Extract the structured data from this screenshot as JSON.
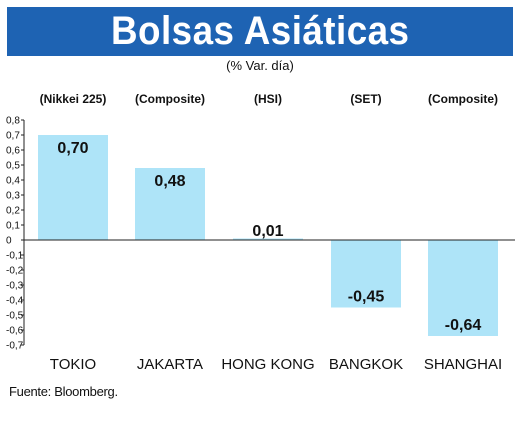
{
  "header": {
    "title": "Bolsas Asiáticas",
    "subtitle": "(% Var. día)"
  },
  "source": "Fuente: Bloomberg.",
  "colors": {
    "title_bg": "#1e63b3",
    "bar_fill": "#aee4f8",
    "title_text": "#ffffff"
  },
  "chart_data": {
    "type": "bar",
    "title": "Bolsas Asiáticas",
    "subtitle": "(% Var. día)",
    "categories": [
      "TOKIO",
      "JAKARTA",
      "HONG KONG",
      "BANGKOK",
      "SHANGHAI"
    ],
    "index_names": [
      "(Nikkei 225)",
      "(Composite)",
      "(HSI)",
      "(SET)",
      "(Composite)"
    ],
    "values": [
      0.7,
      0.48,
      0.01,
      -0.45,
      -0.64
    ],
    "value_labels": [
      "0,70",
      "0,48",
      "0,01",
      "-0,45",
      "-0,64"
    ],
    "ylim": [
      -0.7,
      0.8
    ],
    "yticks": [
      0.8,
      0.7,
      0.6,
      0.5,
      0.4,
      0.3,
      0.2,
      0.1,
      0,
      -0.1,
      -0.2,
      -0.3,
      -0.4,
      -0.5,
      -0.6,
      -0.7
    ],
    "ytick_labels": [
      "0,8",
      "0,7",
      "0,6",
      "0,5",
      "0,4",
      "0,3",
      "0,2",
      "0,1",
      "0",
      "-0,1",
      "-0,2",
      "-0,3",
      "-0,4",
      "-0,5",
      "-0,6",
      "-0,7"
    ],
    "grid": false,
    "legend": "none"
  }
}
